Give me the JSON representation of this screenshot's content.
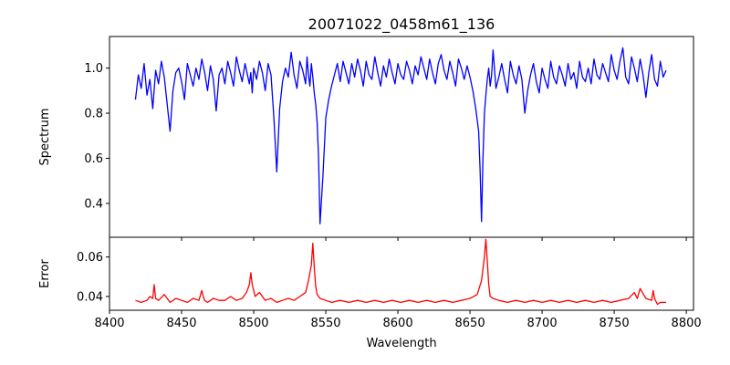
{
  "chart_data": [
    {
      "type": "line",
      "title": "20071022_0458m61_136",
      "xlabel": "",
      "ylabel": "Spectrum",
      "xlim": [
        8400,
        8805
      ],
      "ylim": [
        0.25,
        1.14
      ],
      "xticks": [
        8400,
        8450,
        8500,
        8550,
        8600,
        8650,
        8700,
        8750,
        8800
      ],
      "yticks": [
        0.4,
        0.6,
        0.8,
        1.0
      ],
      "ytick_labels": [
        "0.4",
        "0.6",
        "0.8",
        "1.0"
      ],
      "show_x_tick_labels": false,
      "grid": false,
      "series": [
        {
          "color": "#0000ff",
          "x": [
            8418,
            8420,
            8422,
            8424,
            8426,
            8428,
            8430,
            8432,
            8434,
            8436,
            8438,
            8440,
            8442,
            8444,
            8446,
            8448,
            8450,
            8452,
            8454,
            8456,
            8458,
            8460,
            8462,
            8464,
            8466,
            8468,
            8470,
            8472,
            8474,
            8476,
            8478,
            8480,
            8482,
            8484,
            8486,
            8488,
            8490,
            8492,
            8494,
            8496,
            8497,
            8498,
            8499,
            8500,
            8502,
            8504,
            8506,
            8508,
            8510,
            8512,
            8514,
            8516,
            8518,
            8520,
            8522,
            8524,
            8526,
            8528,
            8530,
            8532,
            8534,
            8536,
            8537,
            8538,
            8539,
            8540,
            8541,
            8542,
            8543,
            8544,
            8545,
            8546,
            8548,
            8550,
            8552,
            8554,
            8556,
            8558,
            8560,
            8562,
            8564,
            8566,
            8568,
            8570,
            8572,
            8574,
            8576,
            8578,
            8580,
            8582,
            8584,
            8586,
            8588,
            8590,
            8592,
            8594,
            8596,
            8598,
            8600,
            8602,
            8604,
            8606,
            8608,
            8610,
            8612,
            8614,
            8616,
            8618,
            8620,
            8622,
            8624,
            8626,
            8628,
            8630,
            8632,
            8634,
            8636,
            8638,
            8640,
            8642,
            8644,
            8646,
            8648,
            8650,
            8652,
            8654,
            8656,
            8657,
            8658,
            8659,
            8660,
            8661,
            8662,
            8663,
            8664,
            8665,
            8666,
            8668,
            8670,
            8672,
            8674,
            8676,
            8678,
            8680,
            8682,
            8684,
            8686,
            8688,
            8690,
            8692,
            8694,
            8696,
            8698,
            8700,
            8702,
            8704,
            8706,
            8708,
            8710,
            8712,
            8714,
            8716,
            8718,
            8720,
            8722,
            8724,
            8726,
            8728,
            8730,
            8732,
            8734,
            8736,
            8738,
            8740,
            8742,
            8744,
            8746,
            8748,
            8750,
            8752,
            8754,
            8756,
            8758,
            8760,
            8762,
            8764,
            8766,
            8768,
            8770,
            8772,
            8774,
            8776,
            8778,
            8780,
            8782,
            8784,
            8786
          ],
          "y": [
            0.86,
            0.97,
            0.91,
            1.02,
            0.88,
            0.95,
            0.82,
            0.99,
            0.93,
            1.03,
            0.96,
            0.84,
            0.72,
            0.9,
            0.98,
            1.0,
            0.94,
            0.86,
            1.02,
            0.97,
            0.92,
            1.0,
            0.95,
            1.04,
            0.98,
            0.9,
            1.01,
            0.95,
            0.81,
            0.97,
            1.0,
            0.93,
            1.03,
            0.98,
            0.92,
            1.05,
            0.99,
            0.94,
            1.02,
            0.96,
            0.93,
            0.98,
            0.89,
            1.0,
            0.95,
            1.03,
            0.98,
            0.9,
            1.02,
            0.97,
            0.78,
            0.54,
            0.82,
            0.94,
            1.0,
            0.96,
            1.07,
            0.97,
            0.91,
            1.03,
            0.99,
            0.93,
            1.05,
            0.97,
            0.92,
            1.02,
            0.96,
            0.89,
            0.84,
            0.76,
            0.6,
            0.31,
            0.52,
            0.78,
            0.86,
            0.92,
            0.97,
            1.02,
            0.94,
            1.03,
            0.98,
            0.93,
            1.02,
            0.96,
            1.04,
            0.99,
            0.92,
            1.03,
            0.97,
            0.95,
            1.05,
            0.98,
            0.92,
            1.01,
            0.96,
            1.04,
            0.98,
            0.93,
            1.02,
            0.97,
            0.95,
            1.03,
            0.99,
            0.93,
            1.01,
            0.97,
            1.05,
            1.0,
            0.95,
            1.04,
            0.98,
            0.93,
            1.02,
            1.06,
            0.99,
            0.95,
            1.03,
            0.98,
            0.92,
            1.04,
            1.0,
            0.95,
            1.01,
            0.96,
            0.9,
            0.82,
            0.72,
            0.55,
            0.32,
            0.6,
            0.8,
            0.88,
            0.95,
            1.0,
            0.92,
            0.97,
            1.08,
            0.91,
            0.96,
            1.02,
            0.95,
            0.89,
            1.03,
            0.97,
            0.93,
            1.01,
            0.95,
            0.8,
            0.9,
            0.97,
            1.02,
            0.94,
            0.89,
            1.0,
            0.95,
            0.91,
            1.03,
            0.96,
            0.93,
            1.01,
            0.97,
            0.92,
            1.02,
            0.95,
            0.98,
            0.91,
            1.03,
            0.96,
            0.94,
            1.0,
            0.93,
            1.04,
            0.97,
            0.95,
            1.02,
            0.98,
            0.94,
            1.06,
            0.99,
            0.95,
            1.03,
            1.09,
            0.96,
            0.93,
            1.05,
            1.0,
            0.94,
            1.04,
            0.97,
            0.87,
            0.98,
            1.06,
            0.95,
            0.92,
            1.03,
            0.96,
            0.99
          ]
        }
      ]
    },
    {
      "type": "line",
      "title": "",
      "xlabel": "Wavelength",
      "ylabel": "Error",
      "xlim": [
        8400,
        8805
      ],
      "ylim": [
        0.033,
        0.07
      ],
      "xticks": [
        8400,
        8450,
        8500,
        8550,
        8600,
        8650,
        8700,
        8750,
        8800
      ],
      "xtick_labels": [
        "8400",
        "8450",
        "8500",
        "8550",
        "8600",
        "8650",
        "8700",
        "8750",
        "8800"
      ],
      "yticks": [
        0.04,
        0.06
      ],
      "ytick_labels": [
        "0.04",
        "0.06"
      ],
      "grid": false,
      "series": [
        {
          "color": "#ff0000",
          "x": [
            8418,
            8422,
            8426,
            8428,
            8430,
            8431,
            8432,
            8434,
            8438,
            8442,
            8446,
            8450,
            8454,
            8458,
            8462,
            8464,
            8465,
            8466,
            8468,
            8472,
            8476,
            8480,
            8484,
            8488,
            8492,
            8495,
            8497,
            8498,
            8499,
            8501,
            8504,
            8508,
            8512,
            8516,
            8520,
            8524,
            8528,
            8532,
            8536,
            8538,
            8540,
            8541,
            8542,
            8543,
            8544,
            8546,
            8550,
            8554,
            8560,
            8566,
            8572,
            8578,
            8584,
            8590,
            8596,
            8602,
            8608,
            8614,
            8620,
            8626,
            8632,
            8638,
            8644,
            8650,
            8655,
            8658,
            8660,
            8661,
            8662,
            8663,
            8664,
            8666,
            8670,
            8676,
            8682,
            8688,
            8694,
            8700,
            8706,
            8712,
            8718,
            8724,
            8730,
            8736,
            8742,
            8748,
            8754,
            8760,
            8764,
            8766,
            8768,
            8772,
            8776,
            8777,
            8778,
            8780,
            8782,
            8786
          ],
          "y": [
            0.038,
            0.037,
            0.038,
            0.04,
            0.039,
            0.046,
            0.039,
            0.038,
            0.041,
            0.037,
            0.039,
            0.038,
            0.037,
            0.039,
            0.038,
            0.043,
            0.04,
            0.038,
            0.037,
            0.039,
            0.038,
            0.038,
            0.04,
            0.038,
            0.039,
            0.042,
            0.046,
            0.052,
            0.046,
            0.04,
            0.042,
            0.038,
            0.039,
            0.037,
            0.038,
            0.039,
            0.038,
            0.04,
            0.042,
            0.048,
            0.056,
            0.067,
            0.055,
            0.045,
            0.041,
            0.039,
            0.038,
            0.037,
            0.038,
            0.037,
            0.038,
            0.037,
            0.038,
            0.037,
            0.038,
            0.037,
            0.038,
            0.037,
            0.038,
            0.037,
            0.038,
            0.037,
            0.038,
            0.039,
            0.041,
            0.048,
            0.06,
            0.069,
            0.058,
            0.046,
            0.04,
            0.039,
            0.038,
            0.037,
            0.038,
            0.037,
            0.038,
            0.037,
            0.038,
            0.037,
            0.038,
            0.037,
            0.038,
            0.037,
            0.038,
            0.037,
            0.038,
            0.039,
            0.042,
            0.039,
            0.044,
            0.039,
            0.038,
            0.043,
            0.039,
            0.036,
            0.037,
            0.037
          ]
        }
      ]
    }
  ]
}
